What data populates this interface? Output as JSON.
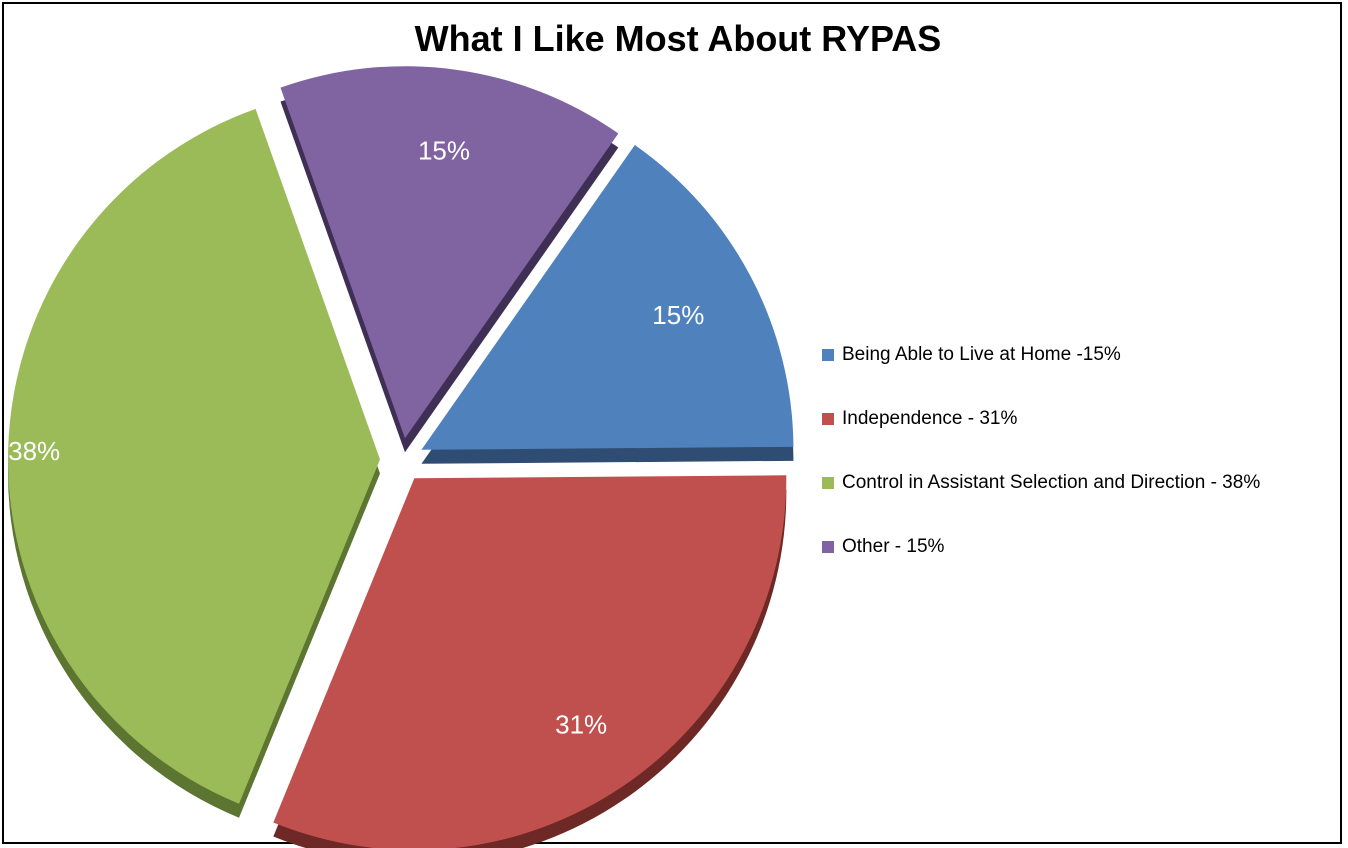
{
  "chart_data": {
    "type": "pie",
    "title": "What I Like Most About RYPAS",
    "slices": [
      {
        "name": "Being Able to Live at Home -15%",
        "value": 15,
        "label": "15%",
        "color": "#4F81BD",
        "side": "#2F4D73"
      },
      {
        "name": "Independence - 31%",
        "value": 31,
        "label": "31%",
        "color": "#C0504D",
        "side": "#6E2826"
      },
      {
        "name": "Control in Assistant Selection and Direction - 38%",
        "value": 38,
        "label": "38%",
        "color": "#9BBB59",
        "side": "#5C7530"
      },
      {
        "name": "Other - 15%",
        "value": 15,
        "label": "15%",
        "color": "#8064A2",
        "side": "#3F2F55"
      }
    ],
    "legend_position": "right",
    "exploded": true,
    "three_d": true
  }
}
